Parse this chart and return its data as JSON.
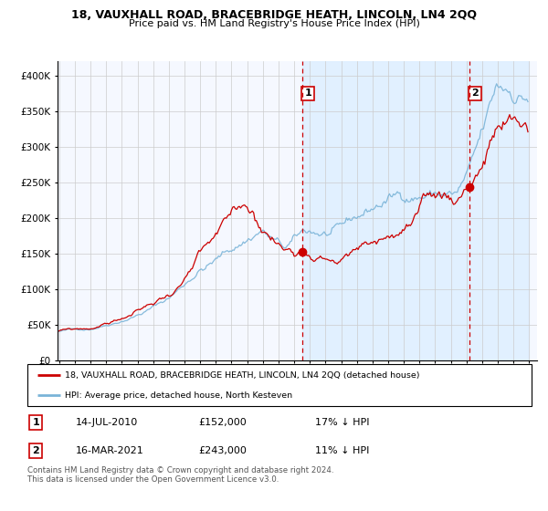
{
  "title": "18, VAUXHALL ROAD, BRACEBRIDGE HEATH, LINCOLN, LN4 2QQ",
  "subtitle": "Price paid vs. HM Land Registry's House Price Index (HPI)",
  "legend_line1": "18, VAUXHALL ROAD, BRACEBRIDGE HEATH, LINCOLN, LN4 2QQ (detached house)",
  "legend_line2": "HPI: Average price, detached house, North Kesteven",
  "footnote": "Contains HM Land Registry data © Crown copyright and database right 2024.\nThis data is licensed under the Open Government Licence v3.0.",
  "point1_date": "14-JUL-2010",
  "point1_price": "£152,000",
  "point1_hpi": "17% ↓ HPI",
  "point2_date": "16-MAR-2021",
  "point2_price": "£243,000",
  "point2_hpi": "11% ↓ HPI",
  "ylim": [
    0,
    420000
  ],
  "start_year": 1995,
  "end_year": 2025,
  "hpi_color": "#7ab4d8",
  "price_color": "#cc0000",
  "point_color": "#cc0000",
  "vline1_color": "#cc0000",
  "vline2_color": "#cc0000",
  "shade_color": "#ddeeff",
  "background_color": "#ffffff",
  "grid_color": "#cccccc",
  "chart_bg": "#f5f8ff"
}
